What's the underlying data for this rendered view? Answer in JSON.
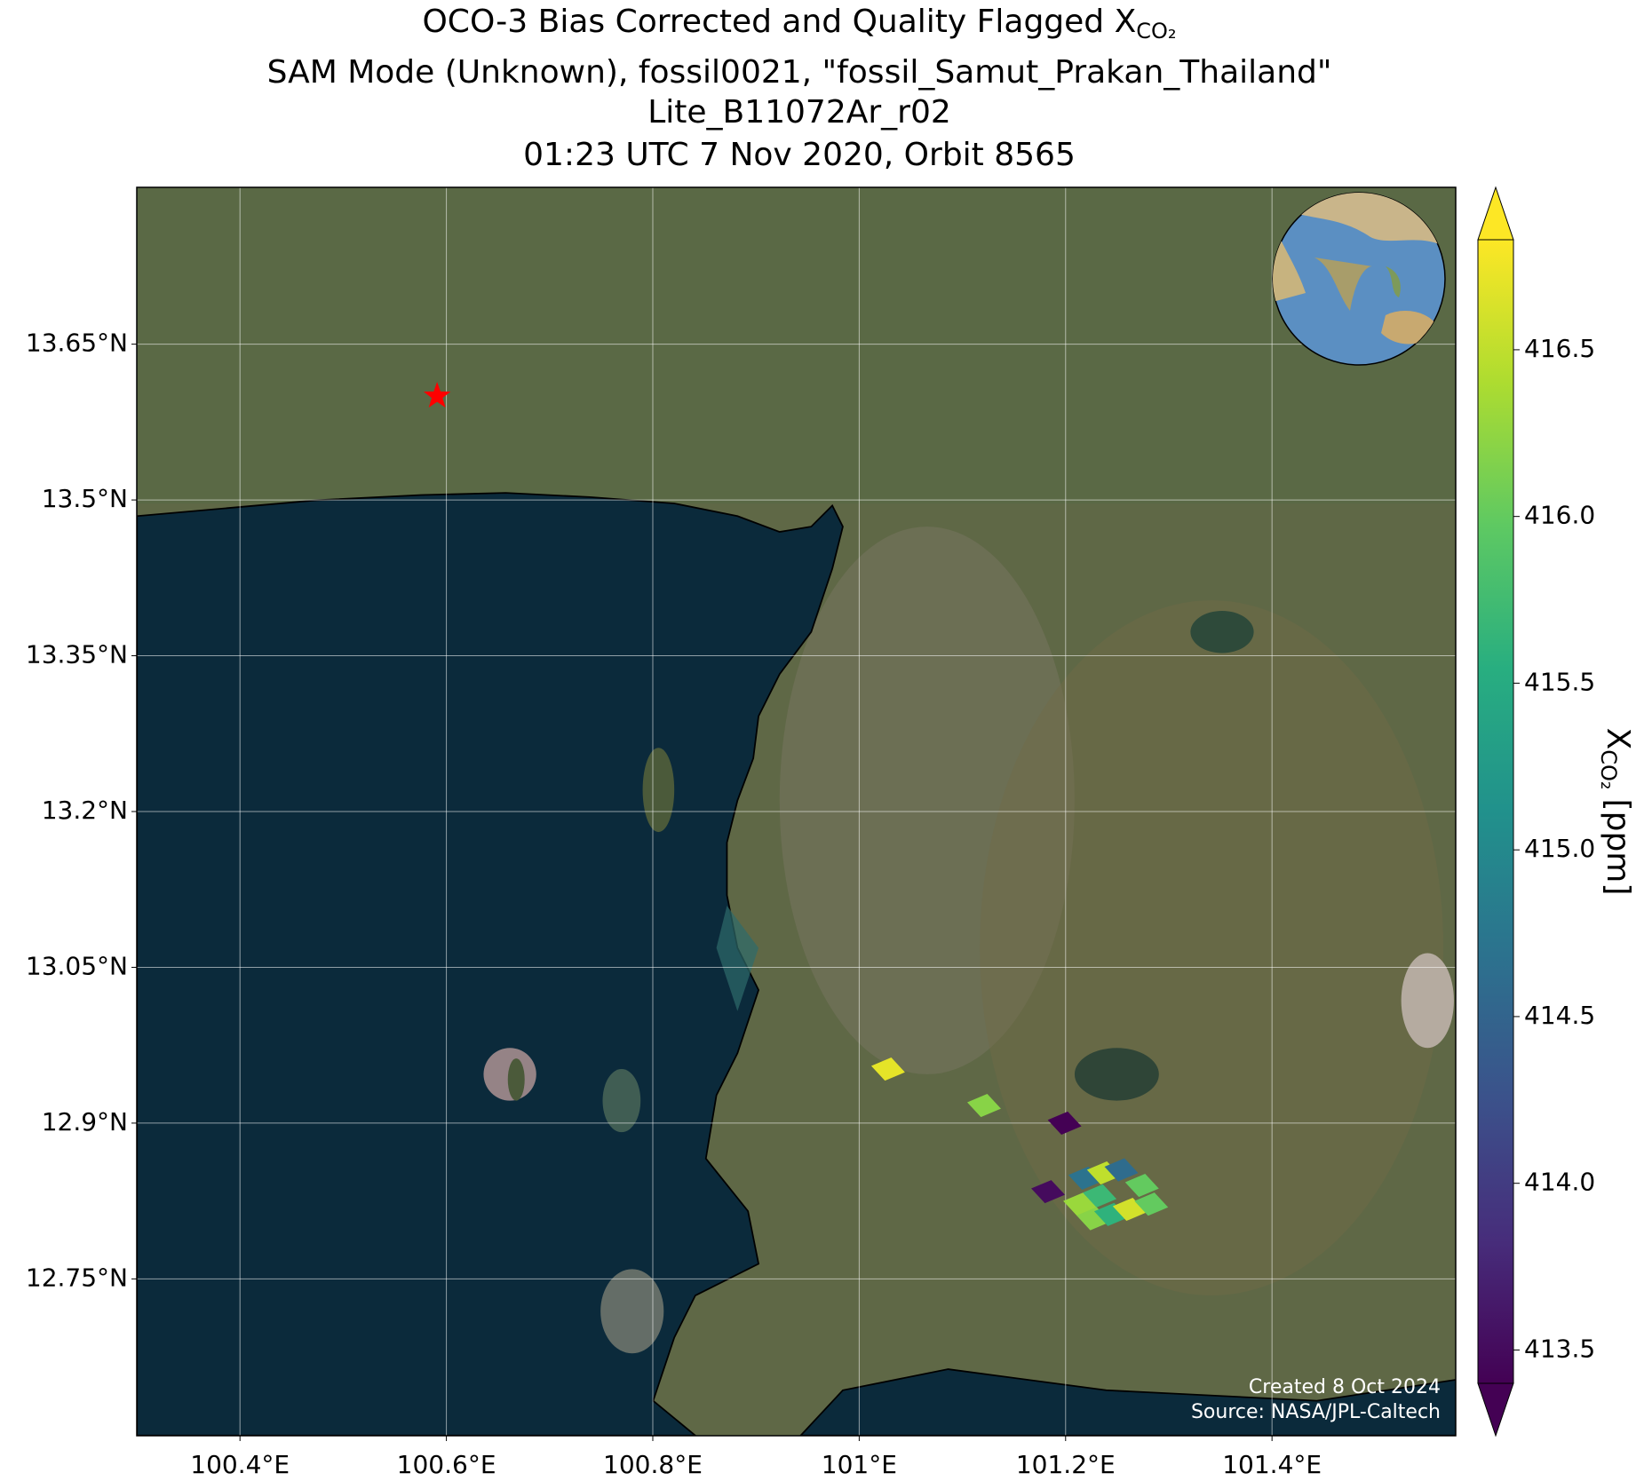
{
  "chart_data": {
    "type": "scatter",
    "title_lines": [
      "OCO-3 Bias Corrected and Quality Flagged X",
      "SAM Mode (Unknown), fossil0021, \"fossil_Samut_Prakan_Thailand\"",
      "Lite_B11072Ar_r02",
      "01:23 UTC 7 Nov 2020, Orbit 8565"
    ],
    "title_subscript": "CO₂",
    "x": [
      101.028,
      101.121,
      101.199,
      101.183,
      101.219,
      101.237,
      101.254,
      101.214,
      101.233,
      101.274,
      101.227,
      101.244,
      101.262,
      101.283
    ],
    "y": [
      12.952,
      12.917,
      12.9,
      12.834,
      12.847,
      12.852,
      12.855,
      12.822,
      12.83,
      12.84,
      12.808,
      12.812,
      12.817,
      12.822
    ],
    "values": [
      416.7,
      416.2,
      413.4,
      413.5,
      414.7,
      416.5,
      414.6,
      416.3,
      415.7,
      416.0,
      416.2,
      415.6,
      416.6,
      416.0
    ],
    "colormap": "viridis",
    "clim": [
      413.4,
      416.83
    ],
    "xlim": [
      100.3,
      101.578
    ],
    "ylim": [
      12.599,
      13.801
    ],
    "xticks": [
      {
        "value": 100.4,
        "label": "100.4°E"
      },
      {
        "value": 100.6,
        "label": "100.6°E"
      },
      {
        "value": 100.8,
        "label": "100.8°E"
      },
      {
        "value": 101,
        "label": "101°E"
      },
      {
        "value": 101.2,
        "label": "101.2°E"
      },
      {
        "value": 101.4,
        "label": "101.4°E"
      }
    ],
    "yticks": [
      {
        "value": 12.75,
        "label": "12.75°N"
      },
      {
        "value": 12.9,
        "label": "12.9°N"
      },
      {
        "value": 13.05,
        "label": "13.05°N"
      },
      {
        "value": 13.2,
        "label": "13.2°N"
      },
      {
        "value": 13.35,
        "label": "13.35°N"
      },
      {
        "value": 13.5,
        "label": "13.5°N"
      },
      {
        "value": 13.65,
        "label": "13.65°N"
      }
    ],
    "cticks": [
      413.5,
      {
        "value": 414.0,
        "label": "414.0"
      },
      414.5,
      {
        "value": 415.0,
        "label": "415.0"
      },
      415.5,
      {
        "value": 416.0,
        "label": "416.0"
      },
      416.5
    ],
    "colorbar_label": "X",
    "colorbar_label_sub": "CO₂",
    "colorbar_label_unit": "[ppm]",
    "grid": true,
    "site": {
      "x": 100.591,
      "y": 13.6
    },
    "annotations": [
      "Created 8 Oct 2024",
      "Source: NASA/JPL-Caltech"
    ]
  }
}
